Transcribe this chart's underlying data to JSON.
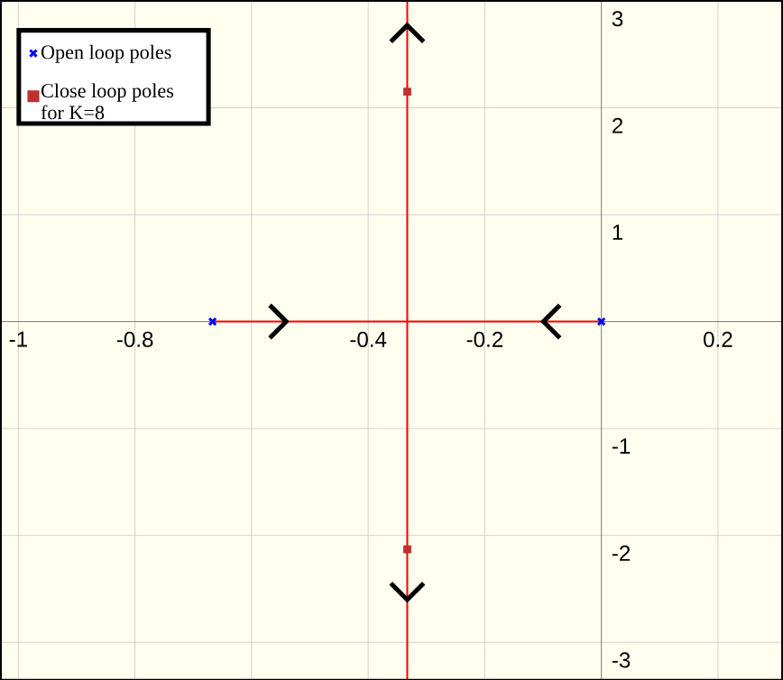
{
  "chart_data": {
    "type": "scatter",
    "xlim": [
      -1.03,
      0.31
    ],
    "ylim": [
      -3.35,
      3.0
    ],
    "xticks": [
      -1,
      -0.8,
      {
        "value": -0.6,
        "label": null
      },
      -0.4,
      -0.2,
      0.2
    ],
    "yticks": [
      -3,
      -2,
      -1,
      1,
      2,
      3
    ],
    "grid": true,
    "legend": "top left",
    "series": [
      {
        "type": "line",
        "color": "#ff0000",
        "x": [
          -0.667,
          0
        ],
        "values": [
          0,
          0
        ]
      },
      {
        "type": "line",
        "color": "#ff0000",
        "x": [
          -0.333,
          -0.333
        ],
        "values": [
          -3.35,
          3.0
        ]
      },
      {
        "name": "Open loop poles",
        "color": "#0000ff",
        "marker": "cross",
        "x": [
          -0.667,
          0
        ],
        "values": [
          0,
          0
        ]
      },
      {
        "name": "Close loop poles for K=8",
        "color": "#c03030",
        "marker": "square",
        "x": [
          -0.333,
          -0.333
        ],
        "values": [
          2.15,
          -2.13
        ]
      }
    ]
  }
}
